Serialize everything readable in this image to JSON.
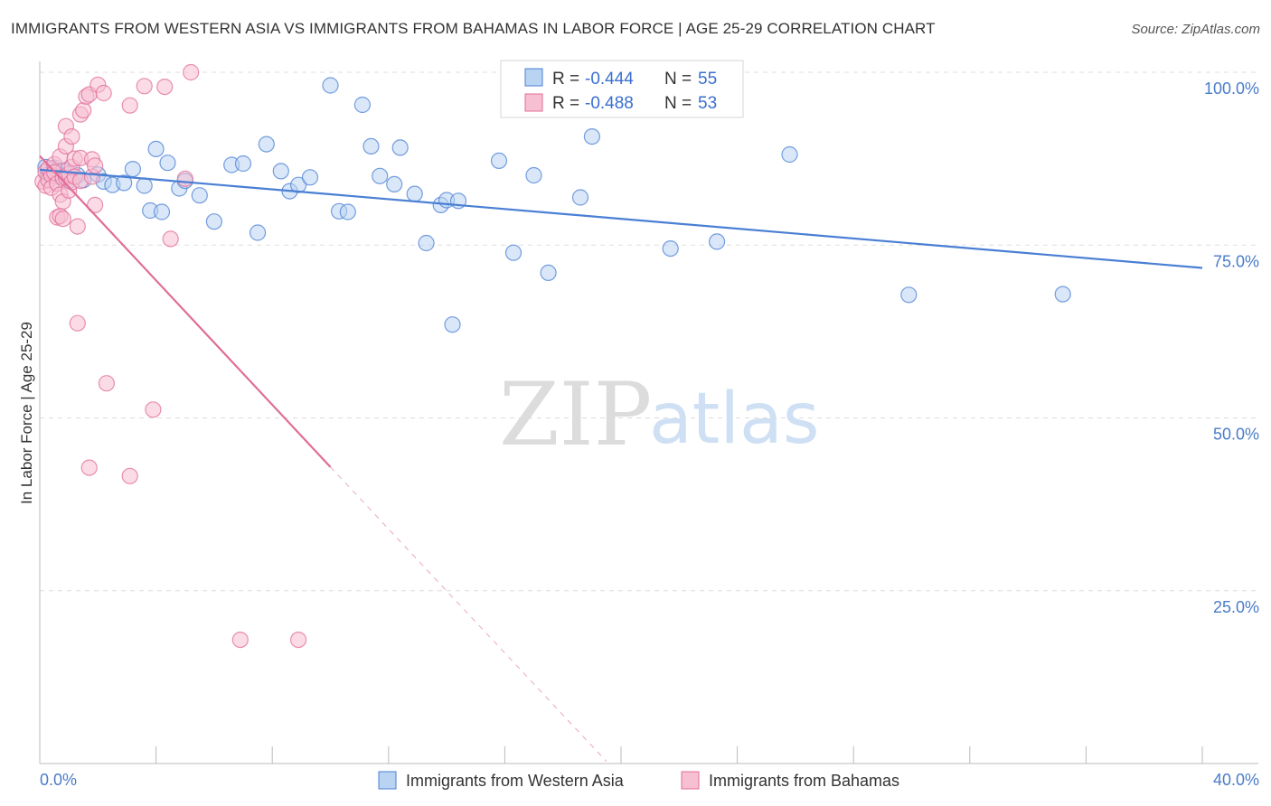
{
  "title": "IMMIGRANTS FROM WESTERN ASIA VS IMMIGRANTS FROM BAHAMAS IN LABOR FORCE | AGE 25-29 CORRELATION CHART",
  "source": "Source: ZipAtlas.com",
  "watermark": {
    "zip": "ZIP",
    "atlas": "atlas"
  },
  "colors": {
    "blue": "#4a7fd4",
    "blue_fill": "#b9d3f2",
    "pink": "#e06c98",
    "pink_fill": "#f7bfd2",
    "axis_text": "#4a7cc9",
    "grid": "#dddddd"
  },
  "legend": {
    "r_label": "R =",
    "n_label": "N =",
    "series1": {
      "r": "-0.444",
      "n": "55"
    },
    "series2": {
      "r": "-0.488",
      "n": "53"
    }
  },
  "chart_data": {
    "type": "scatter",
    "xlabel": "",
    "ylabel": "In Labor Force | Age 25-29",
    "xlim": [
      0,
      40
    ],
    "ylim": [
      0,
      100
    ],
    "x_tick_labels": [
      "0.0%",
      "40.0%"
    ],
    "y_ticks": [
      25,
      50,
      75,
      100
    ],
    "y_tick_labels": [
      "25.0%",
      "50.0%",
      "75.0%",
      "100.0%"
    ],
    "grid": true,
    "legend_position": "top-center",
    "series": [
      {
        "name": "Immigrants from Western Asia",
        "color": "#4a7fd4",
        "trend": {
          "x": [
            0,
            40
          ],
          "y": [
            85.9,
            71.7
          ]
        },
        "points": [
          [
            0.2,
            86.3
          ],
          [
            0.3,
            85.2
          ],
          [
            0.5,
            86.2
          ],
          [
            0.6,
            84.9
          ],
          [
            0.8,
            85.8
          ],
          [
            1.0,
            84.3
          ],
          [
            1.3,
            85.1
          ],
          [
            1.5,
            84.4
          ],
          [
            2.0,
            85.2
          ],
          [
            2.2,
            84.2
          ],
          [
            2.5,
            83.7
          ],
          [
            2.9,
            84.0
          ],
          [
            3.2,
            86.0
          ],
          [
            3.6,
            83.6
          ],
          [
            3.8,
            80.0
          ],
          [
            4.0,
            88.9
          ],
          [
            4.2,
            79.8
          ],
          [
            4.4,
            86.9
          ],
          [
            4.8,
            83.2
          ],
          [
            5.0,
            84.3
          ],
          [
            5.5,
            82.2
          ],
          [
            6.0,
            78.4
          ],
          [
            6.6,
            86.6
          ],
          [
            7.0,
            86.8
          ],
          [
            7.5,
            76.8
          ],
          [
            7.8,
            89.6
          ],
          [
            8.3,
            85.7
          ],
          [
            8.6,
            82.8
          ],
          [
            8.9,
            83.7
          ],
          [
            9.3,
            84.8
          ],
          [
            10.0,
            98.1
          ],
          [
            10.3,
            79.9
          ],
          [
            10.6,
            79.8
          ],
          [
            11.1,
            95.3
          ],
          [
            11.4,
            89.3
          ],
          [
            11.7,
            85.0
          ],
          [
            12.2,
            83.8
          ],
          [
            12.4,
            89.1
          ],
          [
            12.9,
            82.4
          ],
          [
            13.3,
            75.3
          ],
          [
            13.8,
            80.8
          ],
          [
            14.0,
            81.5
          ],
          [
            14.4,
            81.4
          ],
          [
            14.2,
            63.5
          ],
          [
            15.8,
            87.2
          ],
          [
            16.3,
            73.9
          ],
          [
            17.0,
            85.1
          ],
          [
            17.5,
            71.0
          ],
          [
            18.6,
            81.9
          ],
          [
            19.0,
            90.7
          ],
          [
            21.7,
            74.5
          ],
          [
            23.3,
            75.5
          ],
          [
            25.8,
            88.1
          ],
          [
            29.9,
            67.8
          ],
          [
            35.2,
            67.9
          ]
        ]
      },
      {
        "name": "Immigrants from Bahamas",
        "color": "#e06c98",
        "trend": {
          "x": [
            0,
            10
          ],
          "y": [
            87.9,
            42.9
          ]
        },
        "trend_extension": {
          "x": [
            10,
            19.5
          ],
          "y": [
            42.9,
            0.3
          ]
        },
        "points": [
          [
            0.1,
            84.2
          ],
          [
            0.2,
            85.6
          ],
          [
            0.2,
            83.6
          ],
          [
            0.3,
            86.1
          ],
          [
            0.3,
            84.4
          ],
          [
            0.4,
            85.1
          ],
          [
            0.4,
            83.3
          ],
          [
            0.5,
            86.7
          ],
          [
            0.5,
            85.5
          ],
          [
            0.6,
            79.0
          ],
          [
            0.6,
            83.9
          ],
          [
            0.7,
            87.8
          ],
          [
            0.7,
            82.3
          ],
          [
            0.7,
            79.2
          ],
          [
            0.8,
            84.7
          ],
          [
            0.8,
            78.8
          ],
          [
            0.8,
            81.3
          ],
          [
            0.9,
            92.2
          ],
          [
            0.9,
            89.3
          ],
          [
            0.9,
            84.8
          ],
          [
            1.0,
            85.3
          ],
          [
            1.0,
            82.9
          ],
          [
            1.1,
            90.7
          ],
          [
            1.1,
            86.3
          ],
          [
            1.1,
            84.1
          ],
          [
            1.2,
            87.5
          ],
          [
            1.2,
            84.9
          ],
          [
            1.3,
            63.7
          ],
          [
            1.3,
            77.7
          ],
          [
            1.4,
            87.6
          ],
          [
            1.4,
            93.9
          ],
          [
            1.4,
            84.3
          ],
          [
            1.5,
            94.5
          ],
          [
            1.6,
            96.5
          ],
          [
            1.7,
            42.8
          ],
          [
            1.7,
            96.8
          ],
          [
            1.8,
            84.9
          ],
          [
            1.8,
            87.4
          ],
          [
            1.9,
            86.5
          ],
          [
            1.9,
            80.8
          ],
          [
            2.0,
            98.2
          ],
          [
            2.2,
            97.0
          ],
          [
            2.3,
            55.0
          ],
          [
            3.1,
            41.6
          ],
          [
            3.1,
            95.2
          ],
          [
            3.6,
            98.0
          ],
          [
            3.9,
            51.2
          ],
          [
            4.3,
            97.9
          ],
          [
            4.5,
            75.9
          ],
          [
            5.0,
            84.6
          ],
          [
            5.2,
            100.0
          ],
          [
            6.9,
            17.9
          ],
          [
            8.9,
            17.9
          ]
        ]
      }
    ]
  }
}
